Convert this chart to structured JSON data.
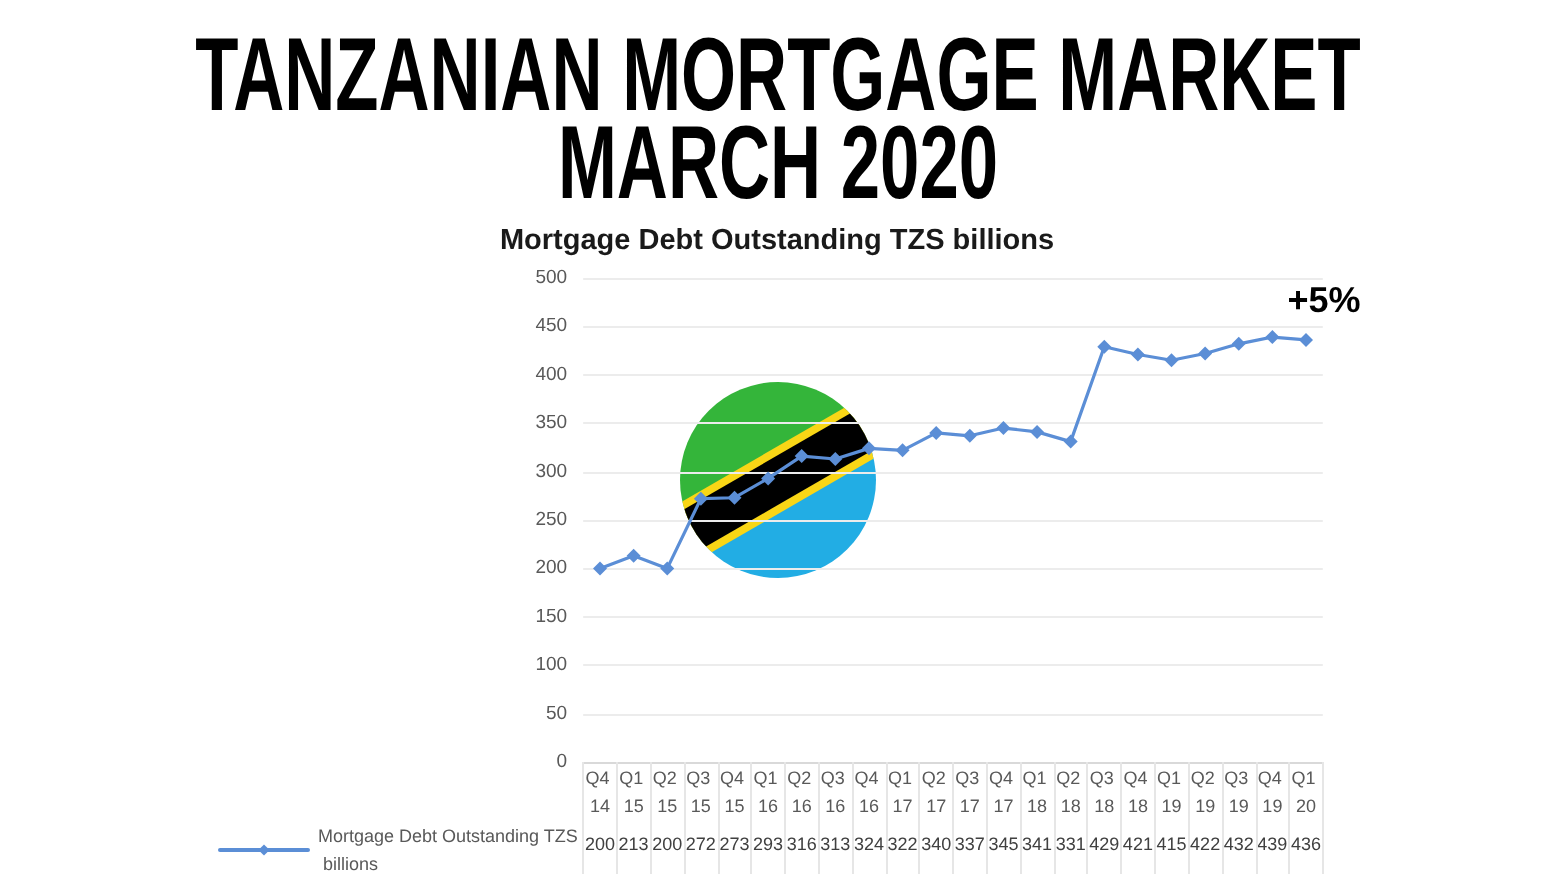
{
  "chart_data": {
    "type": "line",
    "title": "TANZANIAN MORTGAGE MARKET MARCH 2020",
    "subtitle": "Mortgage Debt Outstanding TZS billions",
    "categories": [
      "Q4 14",
      "Q1 15",
      "Q2 15",
      "Q3 15",
      "Q4 15",
      "Q1 16",
      "Q2 16",
      "Q3 16",
      "Q4 16",
      "Q1 17",
      "Q2 17",
      "Q3 17",
      "Q4 17",
      "Q1 18",
      "Q2 18",
      "Q3 18",
      "Q4 18",
      "Q1 19",
      "Q2 19",
      "Q3 19",
      "Q4 19",
      "Q1 20"
    ],
    "series": [
      {
        "name": "Mortgage Debt Outstanding TZS billions",
        "color": "#5b8ed6",
        "values": [
          200,
          213,
          200,
          272,
          273,
          293,
          316,
          313,
          324,
          322,
          340,
          337,
          345,
          341,
          331,
          429,
          421,
          415,
          422,
          432,
          439,
          436
        ]
      }
    ],
    "ylim": [
      0,
      500
    ],
    "yticks": [
      0,
      50,
      100,
      150,
      200,
      250,
      300,
      350,
      400,
      450,
      500
    ],
    "grid": "y",
    "legend": "bottom left",
    "marker": "diamond",
    "line_style": "solid",
    "data_labels": true,
    "annotations": [
      {
        "text": "+5%",
        "x": "Q1 20",
        "y": 436
      }
    ]
  }
}
